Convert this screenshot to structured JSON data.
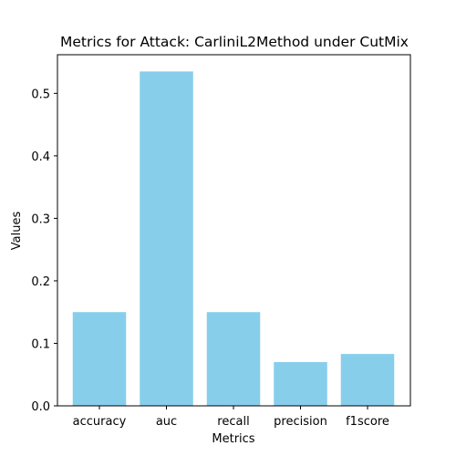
{
  "chart_data": {
    "type": "bar",
    "title": "Metrics for Attack: CarliniL2Method under CutMix",
    "xlabel": "Metrics",
    "ylabel": "Values",
    "categories": [
      "accuracy",
      "auc",
      "recall",
      "precision",
      "f1score"
    ],
    "values": [
      0.15,
      0.535,
      0.15,
      0.07,
      0.083
    ],
    "ylim": [
      0,
      0.5618
    ],
    "yticks": [
      0.0,
      0.1,
      0.2,
      0.3,
      0.4,
      0.5
    ],
    "ytick_labels": [
      "0.0",
      "0.1",
      "0.2",
      "0.3",
      "0.4",
      "0.5"
    ],
    "bar_color": "#87CEEB",
    "grid": false,
    "legend": "none"
  }
}
